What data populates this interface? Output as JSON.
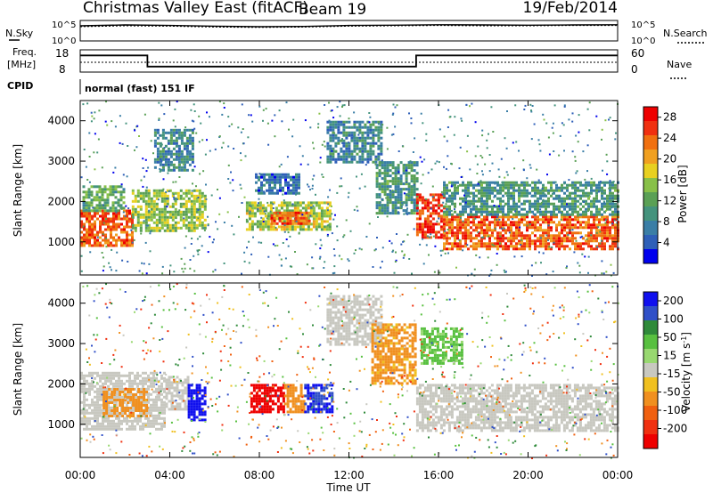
{
  "header": {
    "station": "Christmas Valley East (fitACF)",
    "beam": "Beam 19",
    "date": "19/Feb/2014"
  },
  "top_panels": {
    "nsky_label": "N.Sky",
    "noise_ticks": [
      "10^5",
      "10^0"
    ],
    "nsearch_label": "N.Search",
    "freq_label_1": "Freq.",
    "freq_label_2": "[MHz]",
    "freq_ticks": [
      "18",
      "8"
    ],
    "nave_ticks": [
      "60",
      "0"
    ],
    "nave_label": "Nave",
    "cpid_label": "CPID",
    "cpid_value": "normal (fast) 151 IF"
  },
  "colors": {
    "power_scale": [
      "#0000ee",
      "#2e5fb8",
      "#3a7ea6",
      "#44937d",
      "#5aa055",
      "#88c048",
      "#e8d020",
      "#f0a020",
      "#f07010",
      "#f03010",
      "#ee0000"
    ],
    "velocity_scale": [
      "#1010ee",
      "#3050c8",
      "#2f8a3a",
      "#58c040",
      "#98d870",
      "#c8c8c0",
      "#f0c020",
      "#f09020",
      "#f06010",
      "#f03010",
      "#ee0000"
    ]
  },
  "chart_data": [
    {
      "type": "line",
      "name": "noise",
      "ylabel": "N.Sky",
      "y_scale": "log",
      "yticks": [
        "10^5",
        "10^0"
      ],
      "series": [
        {
          "name": "N.Sky",
          "x": [
            "00:00",
            "02:00",
            "04:00",
            "06:00",
            "08:00",
            "10:00",
            "12:00",
            "14:00",
            "16:00",
            "18:00",
            "20:00",
            "22:00",
            "24:00"
          ],
          "values": [
            5000,
            8000,
            6000,
            4000,
            3000,
            3500,
            6000,
            7000,
            9000,
            8000,
            7000,
            8000,
            9000
          ]
        },
        {
          "name": "N.Search",
          "x": [
            "00:00",
            "02:00",
            "04:00",
            "06:00",
            "08:00",
            "10:00",
            "12:00",
            "14:00",
            "16:00",
            "18:00",
            "20:00",
            "22:00",
            "24:00"
          ],
          "values": [
            3000,
            5000,
            4000,
            2500,
            2000,
            2500,
            4000,
            5000,
            6000,
            5000,
            5000,
            6000,
            6000
          ]
        }
      ]
    },
    {
      "type": "line",
      "name": "frequency",
      "ylabel": "Freq. [MHz]",
      "yticks": [
        18,
        8
      ],
      "y2label": "Nave",
      "y2ticks": [
        60,
        0
      ],
      "series": [
        {
          "name": "Freq.",
          "x": [
            "00:00",
            "03:00",
            "03:00",
            "15:00",
            "15:00",
            "24:00"
          ],
          "values": [
            15.5,
            15.5,
            10.5,
            10.5,
            15.5,
            15.5
          ]
        }
      ]
    },
    {
      "type": "heatmap",
      "name": "power",
      "ylabel": "Slant Range [km]",
      "xlabel": "Time UT",
      "yticks": [
        1000,
        2000,
        3000,
        4000
      ],
      "ylim": [
        180,
        4500
      ],
      "xlim": [
        "00:00",
        "24:00"
      ],
      "xticks": [
        "00:00",
        "04:00",
        "08:00",
        "12:00",
        "16:00",
        "20:00",
        "00:00"
      ],
      "colorbar_label": "Power [dB]",
      "colorbar_ticks": [
        4,
        8,
        12,
        16,
        20,
        24,
        28
      ],
      "colorbar_range": [
        0,
        30
      ],
      "regions": [
        {
          "t0": 0.0,
          "t1": 2.3,
          "r0": 900,
          "r1": 1800,
          "v": 24
        },
        {
          "t0": 0.1,
          "t1": 2.0,
          "r0": 1800,
          "r1": 2400,
          "v": 12
        },
        {
          "t0": 2.3,
          "t1": 5.6,
          "r0": 1300,
          "r1": 2300,
          "v": 15
        },
        {
          "t0": 3.3,
          "t1": 5.0,
          "r0": 2800,
          "r1": 3800,
          "v": 8
        },
        {
          "t0": 7.4,
          "t1": 11.2,
          "r0": 1300,
          "r1": 2000,
          "v": 16
        },
        {
          "t0": 8.5,
          "t1": 10.2,
          "r0": 1450,
          "r1": 1750,
          "v": 24
        },
        {
          "t0": 7.8,
          "t1": 9.8,
          "r0": 2200,
          "r1": 2700,
          "v": 6
        },
        {
          "t0": 11.0,
          "t1": 13.4,
          "r0": 3000,
          "r1": 4000,
          "v": 8
        },
        {
          "t0": 13.2,
          "t1": 15.0,
          "r0": 1700,
          "r1": 3000,
          "v": 10
        },
        {
          "t0": 15.0,
          "t1": 16.2,
          "r0": 1100,
          "r1": 2200,
          "v": 26
        },
        {
          "t0": 16.2,
          "t1": 24.0,
          "r0": 850,
          "r1": 1650,
          "v": 24
        },
        {
          "t0": 16.2,
          "t1": 24.0,
          "r0": 1650,
          "r1": 2500,
          "v": 10
        }
      ]
    },
    {
      "type": "heatmap",
      "name": "velocity",
      "ylabel": "Slant Range [km]",
      "xlabel": "Time UT",
      "yticks": [
        1000,
        2000,
        3000,
        4000
      ],
      "ylim": [
        180,
        4500
      ],
      "xlim": [
        "00:00",
        "24:00"
      ],
      "xticks": [
        "00:00",
        "04:00",
        "08:00",
        "12:00",
        "16:00",
        "20:00",
        "00:00"
      ],
      "colorbar_label": "Velocity [m s^-1]",
      "colorbar_ticks": [
        200,
        100,
        50,
        15,
        -15,
        -50,
        -100,
        -200
      ],
      "regions": [
        {
          "t0": 0.0,
          "t1": 3.8,
          "r0": 900,
          "r1": 2300,
          "v": 0
        },
        {
          "t0": 1.0,
          "t1": 3.0,
          "r0": 1200,
          "r1": 1900,
          "v": -70
        },
        {
          "t0": 3.8,
          "t1": 4.8,
          "r0": 1400,
          "r1": 2200,
          "v": 0
        },
        {
          "t0": 4.8,
          "t1": 5.6,
          "r0": 1100,
          "r1": 2000,
          "v": 220
        },
        {
          "t0": 7.6,
          "t1": 9.1,
          "r0": 1300,
          "r1": 2000,
          "v": -220
        },
        {
          "t0": 9.1,
          "t1": 10.0,
          "r0": 1300,
          "r1": 2000,
          "v": -80
        },
        {
          "t0": 10.0,
          "t1": 11.2,
          "r0": 1300,
          "r1": 2000,
          "v": 200
        },
        {
          "t0": 11.0,
          "t1": 13.4,
          "r0": 3000,
          "r1": 4200,
          "v": 0
        },
        {
          "t0": 13.0,
          "t1": 15.0,
          "r0": 2000,
          "r1": 3500,
          "v": -60
        },
        {
          "t0": 15.0,
          "t1": 24.0,
          "r0": 850,
          "r1": 2000,
          "v": 0
        },
        {
          "t0": 15.2,
          "t1": 17.0,
          "r0": 2500,
          "r1": 3400,
          "v": 60
        }
      ]
    }
  ]
}
